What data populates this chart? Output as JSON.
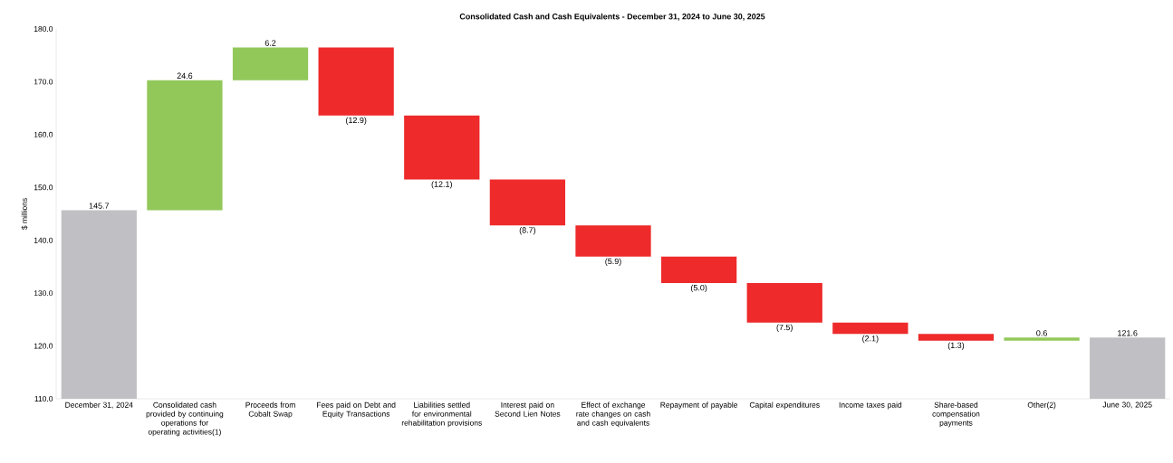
{
  "chart_data": {
    "type": "bar",
    "title": "Consolidated Cash and Cash Equivalents - December 31, 2024 to June 30, 2025",
    "ylabel": "$ millions",
    "categories": [
      "December 31, 2024",
      "Consolidated cash provided by continuing operations for operating activities(1)",
      "Proceeds from Cobalt Swap",
      "Fees paid on Debt and Equity Transactions",
      "Liabilities settled for environmental rehabilitation provisions",
      "Interest paid on Second Lien Notes",
      "Effect of exchange rate changes on cash and cash equivalents",
      "Repayment of payable",
      "Capital expenditures",
      "Income taxes paid",
      "Share-based compensation payments",
      "Other(2)",
      "June 30, 2025"
    ],
    "values": [
      145.7,
      24.6,
      6.2,
      -12.9,
      -12.1,
      -8.7,
      -5.9,
      -5.0,
      -7.5,
      -2.1,
      -1.3,
      0.6,
      121.6
    ],
    "base": [
      null,
      145.7,
      170.3,
      176.5,
      163.6,
      151.5,
      142.8,
      136.9,
      131.9,
      124.4,
      122.3,
      121.0,
      null
    ],
    "colors": [
      "#c0c0c4",
      "#92c85a",
      "#92c85a",
      "#ee2a2a",
      "#ee2a2a",
      "#ee2a2a",
      "#ee2a2a",
      "#ee2a2a",
      "#ee2a2a",
      "#ee2a2a",
      "#ee2a2a",
      "#92c85a",
      "#c0c0c4"
    ],
    "value_labels": [
      "145.7",
      "24.6",
      "6.2",
      "(12.9)",
      "(12.1)",
      "(8.7)",
      "(5.9)",
      "(5.0)",
      "(7.5)",
      "(2.1)",
      "(1.3)",
      "0.6",
      "121.6"
    ],
    "ylim": [
      110,
      180
    ],
    "yticks": [
      {
        "value": 110,
        "label": "110.0"
      },
      {
        "value": 120,
        "label": "120.0"
      },
      {
        "value": 130,
        "label": "130.0"
      },
      {
        "value": 140,
        "label": "140.0"
      },
      {
        "value": 150,
        "label": "150.0"
      },
      {
        "value": 160,
        "label": "160.0"
      },
      {
        "value": 170,
        "label": "170.0"
      },
      {
        "value": 180,
        "label": "180.0"
      }
    ]
  }
}
